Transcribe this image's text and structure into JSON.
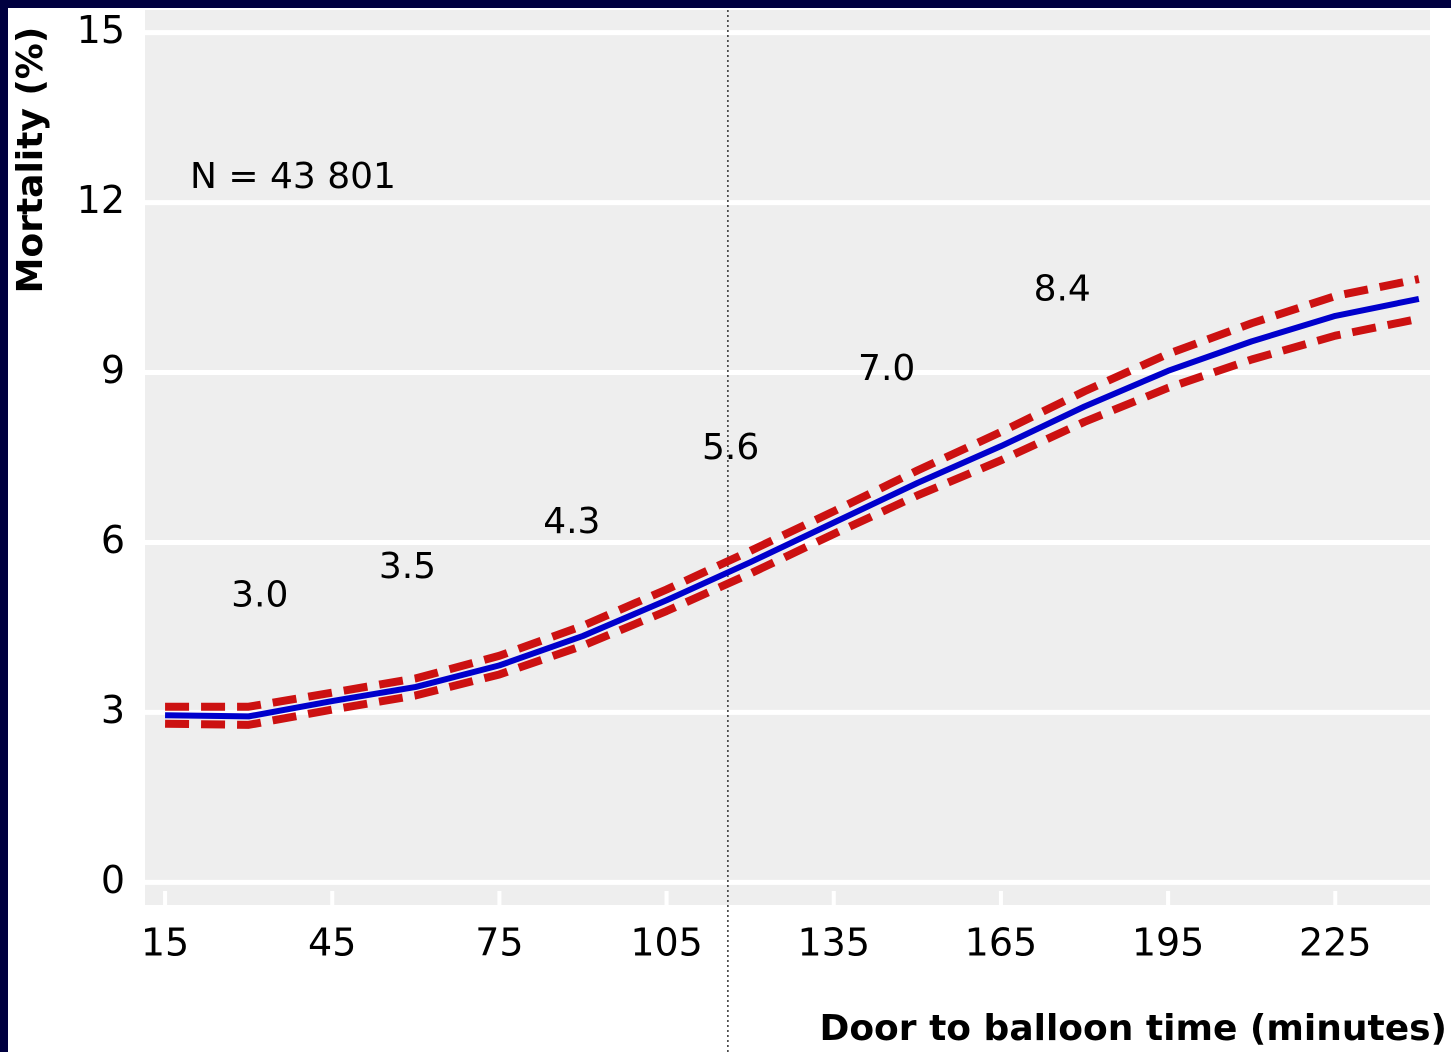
{
  "chart_data": {
    "type": "line",
    "y_axis_label": "Mortality (%)",
    "x_axis_label": "Door to balloon time (minutes)",
    "annotation": "N = 43 801",
    "x": [
      15,
      30,
      45,
      60,
      75,
      90,
      105,
      120,
      135,
      150,
      165,
      180,
      195,
      210,
      225,
      240
    ],
    "series": [
      {
        "color": "#cc1111",
        "dashed": true,
        "values": [
          3.1,
          3.1,
          3.35,
          3.6,
          4.0,
          4.53,
          5.17,
          5.85,
          6.55,
          7.27,
          7.95,
          8.67,
          9.33,
          9.87,
          10.35,
          10.65
        ]
      },
      {
        "color": "#cc1111",
        "dashed": true,
        "values": [
          2.8,
          2.78,
          3.05,
          3.3,
          3.67,
          4.18,
          4.79,
          5.45,
          6.15,
          6.83,
          7.45,
          8.13,
          8.73,
          9.23,
          9.65,
          9.95
        ]
      },
      {
        "color": "#0000cc",
        "dashed": false,
        "values": [
          2.95,
          2.93,
          3.2,
          3.45,
          3.83,
          4.35,
          4.98,
          5.65,
          6.35,
          7.05,
          7.7,
          8.4,
          9.03,
          9.55,
          10.0,
          10.3
        ]
      }
    ],
    "bin_labels": {
      "x": [
        32,
        58.5,
        88,
        116.5,
        144.5,
        176
      ],
      "values": [
        3.0,
        3.5,
        4.3,
        5.6,
        7.0,
        8.4
      ],
      "value_labels": [
        "3.0",
        "3.5",
        "4.3",
        "5.6",
        "7.0",
        "8.4"
      ]
    },
    "reference_line_x": 116,
    "xlim": [
      11.4,
      242
    ],
    "xticks": [
      15,
      45,
      75,
      105,
      135,
      165,
      195,
      225
    ],
    "ylim": [
      -0.4,
      15.4
    ],
    "yticks": [
      0,
      3,
      6,
      9,
      12,
      15
    ],
    "grid": true
  }
}
